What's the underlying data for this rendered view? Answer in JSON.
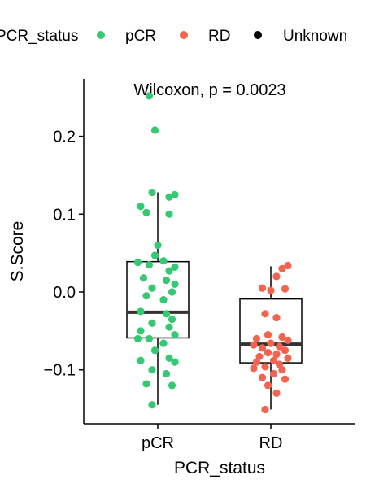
{
  "chart_data": {
    "type": "scatter",
    "title": "",
    "xlabel": "PCR_status",
    "ylabel": "S.Score",
    "categories": [
      "pCR",
      "RD"
    ],
    "ylim": [
      -0.17,
      0.27
    ],
    "yticks": [
      -0.1,
      0.0,
      0.1,
      0.2
    ],
    "ytick_labels": [
      "−0.1",
      "0.0",
      "0.1",
      "0.2"
    ],
    "annotation": "Wilcoxon, p = 0.0023",
    "legend": {
      "title": "PCR_status",
      "placement": "top",
      "entries": [
        {
          "label": "pCR",
          "color": "#36c973"
        },
        {
          "label": "RD",
          "color": "#f36450"
        },
        {
          "label": "Unknown",
          "color": "#000000"
        }
      ]
    },
    "boxes": [
      {
        "category": "pCR",
        "q1": -0.059,
        "median": -0.026,
        "q3": 0.039,
        "whisker_low": -0.145,
        "whisker_high": 0.128
      },
      {
        "category": "RD",
        "q1": -0.091,
        "median": -0.067,
        "q3": -0.009,
        "whisker_low": -0.151,
        "whisker_high": 0.033
      }
    ],
    "series": [
      {
        "name": "pCR",
        "color": "#36c973",
        "points": [
          [
            -0.03,
            0.252
          ],
          [
            -0.01,
            0.208
          ],
          [
            -0.02,
            0.128
          ],
          [
            0.06,
            0.125
          ],
          [
            0.04,
            0.122
          ],
          [
            -0.06,
            0.11
          ],
          [
            -0.04,
            0.102
          ],
          [
            0.04,
            0.1
          ],
          [
            0.0,
            0.06
          ],
          [
            -0.01,
            0.047
          ],
          [
            0.02,
            0.04
          ],
          [
            -0.07,
            0.038
          ],
          [
            -0.03,
            0.035
          ],
          [
            0.06,
            0.032
          ],
          [
            0.04,
            0.027
          ],
          [
            -0.05,
            0.018
          ],
          [
            0.03,
            0.015
          ],
          [
            0.06,
            0.01
          ],
          [
            -0.02,
            0.005
          ],
          [
            0.05,
            0.0
          ],
          [
            -0.04,
            -0.005
          ],
          [
            0.02,
            -0.01
          ],
          [
            -0.06,
            -0.025
          ],
          [
            0.03,
            -0.028
          ],
          [
            0.05,
            -0.035
          ],
          [
            -0.02,
            -0.04
          ],
          [
            0.04,
            -0.045
          ],
          [
            -0.06,
            -0.05
          ],
          [
            0.06,
            -0.055
          ],
          [
            -0.03,
            -0.06
          ],
          [
            0.02,
            -0.066
          ],
          [
            -0.07,
            -0.06
          ],
          [
            -0.01,
            -0.075
          ],
          [
            0.04,
            -0.085
          ],
          [
            -0.06,
            -0.088
          ],
          [
            0.06,
            -0.09
          ],
          [
            -0.02,
            -0.1
          ],
          [
            0.03,
            -0.105
          ],
          [
            -0.04,
            -0.118
          ],
          [
            0.05,
            -0.12
          ],
          [
            -0.02,
            -0.145
          ]
        ]
      },
      {
        "name": "RD",
        "color": "#f36450",
        "points": [
          [
            0.06,
            0.034
          ],
          [
            0.04,
            0.03
          ],
          [
            0.02,
            0.02
          ],
          [
            -0.03,
            0.005
          ],
          [
            0.0,
            0.002
          ],
          [
            0.05,
            0.004
          ],
          [
            -0.02,
            -0.028
          ],
          [
            0.02,
            -0.033
          ],
          [
            -0.01,
            -0.055
          ],
          [
            0.04,
            -0.058
          ],
          [
            -0.05,
            -0.06
          ],
          [
            0.06,
            -0.062
          ],
          [
            0.0,
            -0.066
          ],
          [
            -0.06,
            -0.068
          ],
          [
            0.03,
            -0.07
          ],
          [
            -0.03,
            -0.072
          ],
          [
            0.05,
            -0.075
          ],
          [
            -0.01,
            -0.078
          ],
          [
            0.02,
            -0.08
          ],
          [
            -0.04,
            -0.083
          ],
          [
            0.06,
            -0.085
          ],
          [
            0.01,
            -0.088
          ],
          [
            -0.05,
            -0.09
          ],
          [
            0.03,
            -0.093
          ],
          [
            -0.02,
            -0.096
          ],
          [
            0.04,
            -0.1
          ],
          [
            -0.06,
            -0.098
          ],
          [
            0.01,
            -0.105
          ],
          [
            -0.03,
            -0.11
          ],
          [
            0.05,
            -0.112
          ],
          [
            -0.01,
            -0.12
          ],
          [
            0.02,
            -0.13
          ],
          [
            -0.02,
            -0.151
          ]
        ]
      }
    ]
  }
}
